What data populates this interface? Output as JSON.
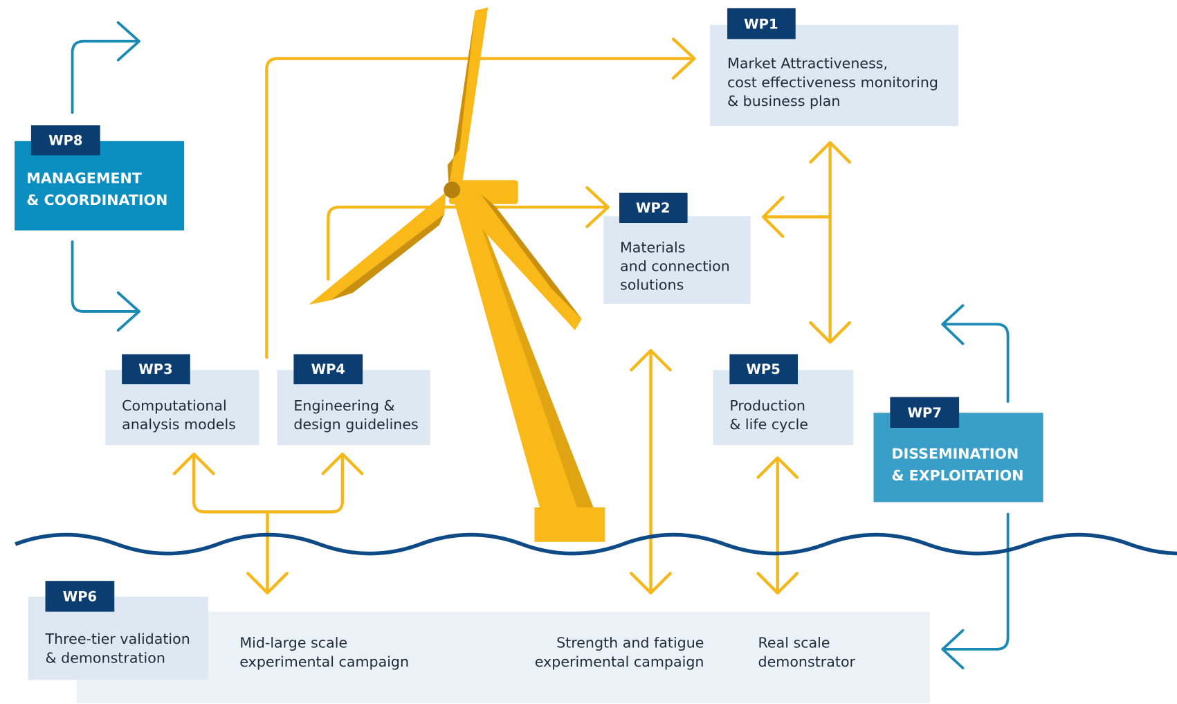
{
  "nodes": [
    {
      "id": "WP8",
      "lines": [
        "MANAGEMENT",
        "& COORDINATION"
      ]
    },
    {
      "id": "WP1",
      "lines": [
        "Market Attractiveness,",
        "cost effectiveness monitoring",
        "& business plan"
      ]
    },
    {
      "id": "WP2",
      "lines": [
        "Materials",
        "and connection",
        "solutions"
      ]
    },
    {
      "id": "WP3",
      "lines": [
        "Computational",
        "analysis models"
      ]
    },
    {
      "id": "WP4",
      "lines": [
        "Engineering &",
        "design guidelines"
      ]
    },
    {
      "id": "WP5",
      "lines": [
        "Production",
        "& life cycle"
      ]
    },
    {
      "id": "WP7",
      "lines": [
        "DISSEMINATION",
        "& EXPLOITATION"
      ]
    },
    {
      "id": "WP6",
      "lines": [
        "Three-tier validation",
        "& demonstration"
      ],
      "items": [
        [
          "Mid-large scale",
          "experimental campaign"
        ],
        [
          "Strength and fatigue",
          "experimental campaign"
        ],
        [
          "Real scale",
          "demonstrator"
        ]
      ]
    }
  ]
}
